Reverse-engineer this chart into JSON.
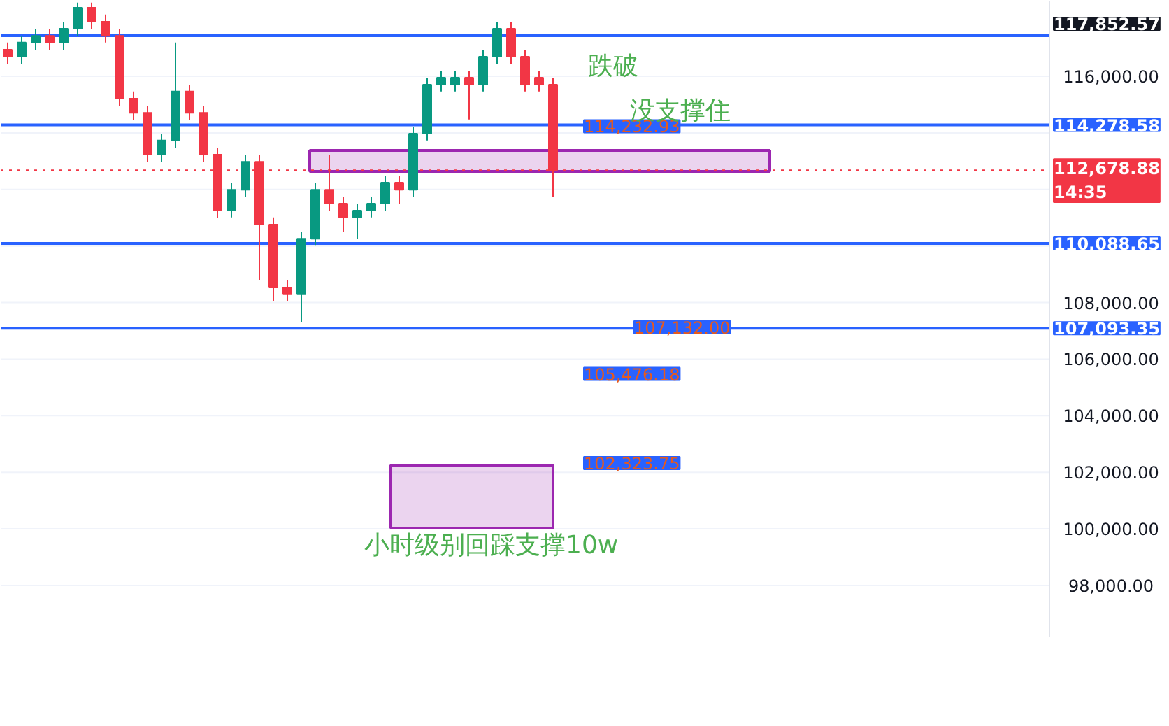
{
  "chart_data": {
    "type": "candlestick",
    "categories": [
      null,
      null,
      null,
      null,
      null,
      null,
      null,
      null,
      null,
      null,
      null,
      null,
      null,
      null,
      null,
      null,
      null,
      null,
      null,
      null,
      null,
      null,
      null,
      null,
      null,
      null,
      null,
      null,
      null,
      null,
      null,
      null,
      null,
      null,
      null,
      null,
      null,
      null,
      null,
      null,
      null,
      null,
      null,
      null,
      null,
      null,
      null,
      null,
      null,
      null,
      null,
      null,
      null,
      null,
      null,
      null,
      null,
      null,
      null,
      null,
      null,
      null,
      null,
      null,
      null,
      null,
      null,
      null,
      null,
      null,
      null,
      null,
      null,
      null,
      null
    ],
    "ohlc": [
      [
        116940,
        117190,
        116440,
        116690
      ],
      [
        116690,
        117430,
        116440,
        117190
      ],
      [
        117190,
        117680,
        116940,
        117430
      ],
      [
        117430,
        117680,
        116940,
        117190
      ],
      [
        117190,
        117930,
        116940,
        117680
      ],
      [
        117680,
        118600,
        117430,
        118420
      ],
      [
        118420,
        118600,
        117680,
        117930
      ],
      [
        117930,
        118180,
        117190,
        117430
      ],
      [
        117430,
        117680,
        114960,
        115210
      ],
      [
        115210,
        115460,
        114460,
        114710
      ],
      [
        114710,
        114960,
        112980,
        113230
      ],
      [
        113230,
        113970,
        112980,
        113730
      ],
      [
        113730,
        117190,
        113480,
        115460
      ],
      [
        115460,
        115700,
        114460,
        114710
      ],
      [
        114710,
        114960,
        112980,
        113230
      ],
      [
        113230,
        113480,
        111000,
        111250
      ],
      [
        111250,
        112240,
        111010,
        111990
      ],
      [
        111990,
        113230,
        111750,
        112980
      ],
      [
        112980,
        113230,
        108780,
        110760
      ],
      [
        110760,
        111010,
        108040,
        108530
      ],
      [
        108530,
        108780,
        108040,
        108290
      ],
      [
        108290,
        110510,
        107300,
        110260
      ],
      [
        110260,
        112240,
        110010,
        111990
      ],
      [
        111990,
        113230,
        111250,
        111500
      ],
      [
        111500,
        111750,
        110510,
        111010
      ],
      [
        111010,
        111500,
        110260,
        111250
      ],
      [
        111250,
        111750,
        111010,
        111500
      ],
      [
        111500,
        112490,
        111250,
        112240
      ],
      [
        112240,
        112490,
        111500,
        111990
      ],
      [
        111990,
        114220,
        111750,
        113970
      ],
      [
        113970,
        115950,
        113730,
        115700
      ],
      [
        115700,
        116200,
        115460,
        115950
      ],
      [
        115700,
        116200,
        115460,
        115950
      ],
      [
        115950,
        116200,
        114470,
        115700
      ],
      [
        115700,
        116940,
        115460,
        116690
      ],
      [
        116690,
        117930,
        116440,
        117680
      ],
      [
        117680,
        117930,
        116440,
        116690
      ],
      [
        116690,
        116940,
        115460,
        115700
      ],
      [
        115950,
        116200,
        115460,
        115700
      ],
      [
        115700,
        115950,
        111750,
        112678.88
      ],
      null,
      null,
      null,
      null,
      null,
      null,
      null,
      null,
      null,
      null,
      null,
      null,
      null,
      null,
      null,
      null,
      null,
      null,
      null,
      null,
      null,
      null,
      null,
      null,
      null,
      null,
      null,
      null,
      null,
      null,
      null,
      null,
      null,
      null,
      null
    ],
    "ylim": [
      96170,
      118670
    ],
    "yticks": [
      {
        "value": 98000,
        "label": "98,000.00"
      },
      {
        "value": 100000,
        "label": "100,000.00"
      },
      {
        "value": 102000,
        "label": "102,000.00"
      },
      {
        "value": 104000,
        "label": "104,000.00"
      },
      {
        "value": 106000,
        "label": "106,000.00"
      },
      {
        "value": 108000,
        "label": "108,000.00"
      },
      {
        "value": 110000,
        "label": null
      },
      {
        "value": 112000,
        "label": null
      },
      {
        "value": 114000,
        "label": null
      },
      {
        "value": 116000,
        "label": "116,000.00"
      }
    ],
    "tick_labels": "y",
    "grid": "y",
    "ref_lines": [
      {
        "axis": "y",
        "value": 117434,
        "color": "#2962ff",
        "line_style": "solid"
      },
      {
        "axis": "y",
        "value": 114278.58,
        "label": "114,278.58",
        "color": "#2962ff",
        "line_style": "solid"
      },
      {
        "axis": "y",
        "value": 110088.65,
        "label": "110,088.65",
        "color": "#2962ff",
        "line_style": "solid"
      },
      {
        "axis": "y",
        "value": 107093.35,
        "label": "107,093.35",
        "color": "#2962ff",
        "line_style": "solid"
      },
      {
        "axis": "y",
        "value": 112678.88,
        "label": "112,678.88\n14:35",
        "color": "#f23645",
        "line_style": "dotted"
      }
    ],
    "bands": [
      {
        "axis": "y",
        "from": 112637,
        "to": 113379,
        "color": "#9c27b0"
      },
      {
        "axis": "y",
        "from": 100028,
        "to": 102253,
        "color": "#9c27b0"
      }
    ],
    "annotations": [
      "117,852.57",
      {
        "text": "114,232.93",
        "y": 114232.93
      },
      {
        "text": "107,132.00",
        "y": 107132.0
      },
      "105,476.18",
      "102,323.75",
      "跌破",
      "没支撑住",
      "小时级别回踩支撑10w"
    ]
  }
}
